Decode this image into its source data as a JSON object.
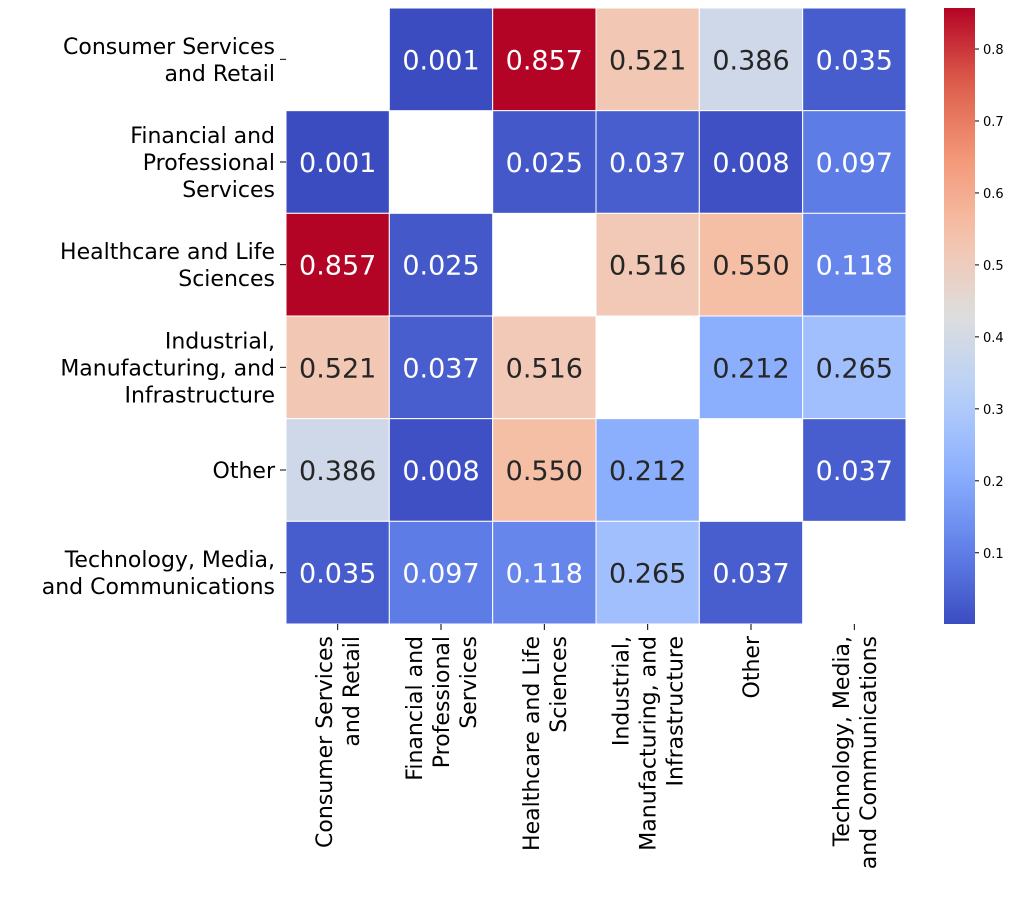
{
  "chart_data": {
    "type": "heatmap",
    "title": "",
    "xlabel": "",
    "ylabel": "",
    "colormap": "coolwarm",
    "color_range": [
      0.001,
      0.857
    ],
    "categories": [
      "Consumer Services\nand Retail",
      "Financial and\nProfessional\nServices",
      "Healthcare and Life\nSciences",
      "Industrial,\nManufacturing, and\nInfrastructure",
      "Other",
      "Technology, Media,\nand Communications"
    ],
    "values": [
      [
        null,
        0.001,
        0.857,
        0.521,
        0.386,
        0.035
      ],
      [
        0.001,
        null,
        0.025,
        0.037,
        0.008,
        0.097
      ],
      [
        0.857,
        0.025,
        null,
        0.516,
        0.55,
        0.118
      ],
      [
        0.521,
        0.037,
        0.516,
        null,
        0.212,
        0.265
      ],
      [
        0.386,
        0.008,
        0.55,
        0.212,
        null,
        0.037
      ],
      [
        0.035,
        0.097,
        0.118,
        0.265,
        0.037,
        null
      ]
    ],
    "annotation_format": "0.000",
    "colorbar": {
      "ticks": [
        0.1,
        0.2,
        0.3,
        0.4,
        0.5,
        0.6,
        0.7,
        0.8
      ],
      "tick_labels": [
        "0.1",
        "0.2",
        "0.3",
        "0.4",
        "0.5",
        "0.6",
        "0.7",
        "0.8"
      ]
    }
  }
}
